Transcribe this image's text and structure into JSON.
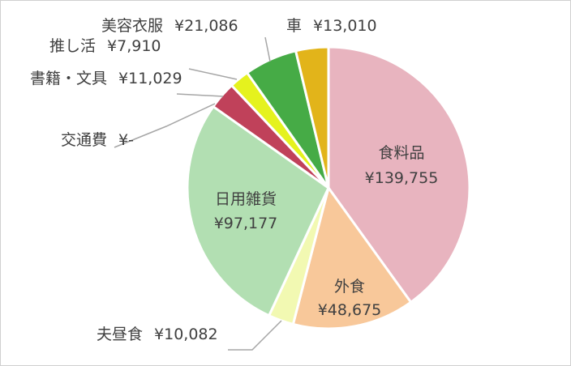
{
  "chart_data": {
    "type": "pie",
    "title": "",
    "slices": [
      {
        "name": "食料品",
        "value_text": "¥139,755",
        "value": 139755,
        "color": "#e8b4bf"
      },
      {
        "name": "外食",
        "value_text": "¥48,675",
        "value": 48675,
        "color": "#f8c89a"
      },
      {
        "name": "夫昼食",
        "value_text": "¥10,082",
        "value": 10082,
        "color": "#f2f9b2"
      },
      {
        "name": "日用雑貨",
        "value_text": "¥97,177",
        "value": 97177,
        "color": "#b2dfb2"
      },
      {
        "name": "交通費",
        "value_text": "¥-",
        "value": 0,
        "color": "#9e9e9e"
      },
      {
        "name": "書籍・文具",
        "value_text": "¥11,029",
        "value": 11029,
        "color": "#c0415a"
      },
      {
        "name": "推し活",
        "value_text": "¥7,910",
        "value": 7910,
        "color": "#e5f21e"
      },
      {
        "name": "美容衣服",
        "value_text": "¥21,086",
        "value": 21086,
        "color": "#46ab46"
      },
      {
        "name": "車",
        "value_text": "¥13,010",
        "value": 13010,
        "color": "#e2b41a"
      }
    ]
  }
}
